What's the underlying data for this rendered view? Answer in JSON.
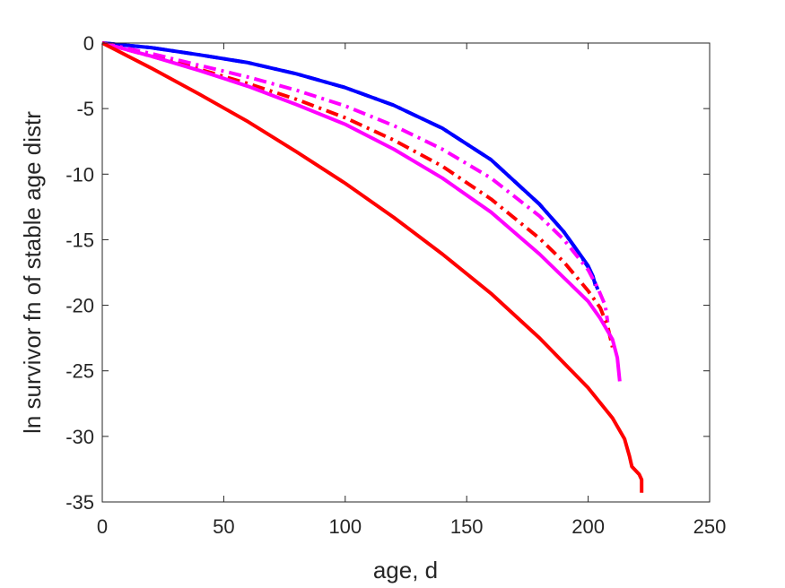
{
  "chart_data": {
    "type": "line",
    "title": "",
    "xlabel": "age, d",
    "ylabel": "ln survivor fn of stable age distr",
    "xlim": [
      0,
      250
    ],
    "ylim": [
      -35,
      0
    ],
    "xticks": [
      0,
      50,
      100,
      150,
      200,
      250
    ],
    "yticks": [
      0,
      -5,
      -10,
      -15,
      -20,
      -25,
      -30,
      -35
    ],
    "xtick_labels": [
      "0",
      "50",
      "100",
      "150",
      "200",
      "250"
    ],
    "ytick_labels": [
      "0",
      "-5",
      "-10",
      "-15",
      "-20",
      "-25",
      "-30",
      "-35"
    ],
    "grid": false,
    "legend": "none",
    "series": [
      {
        "color": "#0000ff",
        "style": "solid",
        "x": [
          0,
          20,
          40,
          60,
          80,
          100,
          120,
          140,
          160,
          180,
          190,
          195,
          200,
          202,
          203
        ],
        "y": [
          0,
          -0.35,
          -0.9,
          -1.5,
          -2.35,
          -3.4,
          -4.75,
          -6.5,
          -8.9,
          -12.3,
          -14.4,
          -15.7,
          -17.0,
          -17.8,
          -18.5
        ]
      },
      {
        "color": "#0000ff",
        "style": "dashdot",
        "x": [
          0,
          20,
          40,
          60,
          80,
          100,
          120,
          140,
          160,
          180,
          190,
          195,
          200,
          202,
          204
        ],
        "y": [
          0,
          -0.35,
          -0.9,
          -1.5,
          -2.35,
          -3.4,
          -4.75,
          -6.5,
          -8.9,
          -12.3,
          -14.4,
          -15.7,
          -17.1,
          -17.9,
          -18.8
        ]
      },
      {
        "color": "#ff00ff",
        "style": "dashdot",
        "x": [
          0,
          20,
          40,
          60,
          80,
          100,
          120,
          140,
          160,
          180,
          190,
          200,
          204,
          207,
          208
        ],
        "y": [
          0,
          -0.8,
          -1.7,
          -2.6,
          -3.6,
          -4.8,
          -6.3,
          -8.1,
          -10.3,
          -13.2,
          -15.0,
          -17.3,
          -18.7,
          -20.0,
          -21.3
        ]
      },
      {
        "color": "#ff0000",
        "style": "dashdot",
        "x": [
          0,
          20,
          40,
          60,
          80,
          100,
          120,
          140,
          160,
          180,
          190,
          200,
          205,
          208,
          210
        ],
        "y": [
          0,
          -1.0,
          -2.0,
          -3.1,
          -4.3,
          -5.7,
          -7.4,
          -9.4,
          -11.9,
          -14.9,
          -16.7,
          -18.9,
          -20.2,
          -21.6,
          -23.2
        ]
      },
      {
        "color": "#ff00ff",
        "style": "solid",
        "x": [
          0,
          20,
          40,
          60,
          80,
          100,
          120,
          140,
          160,
          180,
          200,
          205,
          210,
          212,
          213
        ],
        "y": [
          0,
          -1.0,
          -2.1,
          -3.3,
          -4.7,
          -6.2,
          -8.1,
          -10.3,
          -12.9,
          -16.1,
          -19.7,
          -21.0,
          -22.6,
          -24.0,
          -25.8
        ]
      },
      {
        "color": "#ff0000",
        "style": "solid",
        "x": [
          0,
          20,
          40,
          60,
          80,
          100,
          120,
          140,
          160,
          180,
          200,
          210,
          215,
          217,
          218,
          221,
          222,
          222
        ],
        "y": [
          0,
          -1.9,
          -3.9,
          -6.0,
          -8.3,
          -10.7,
          -13.3,
          -16.1,
          -19.1,
          -22.5,
          -26.3,
          -28.6,
          -30.2,
          -31.5,
          -32.3,
          -32.9,
          -33.3,
          -34.3
        ]
      }
    ]
  }
}
